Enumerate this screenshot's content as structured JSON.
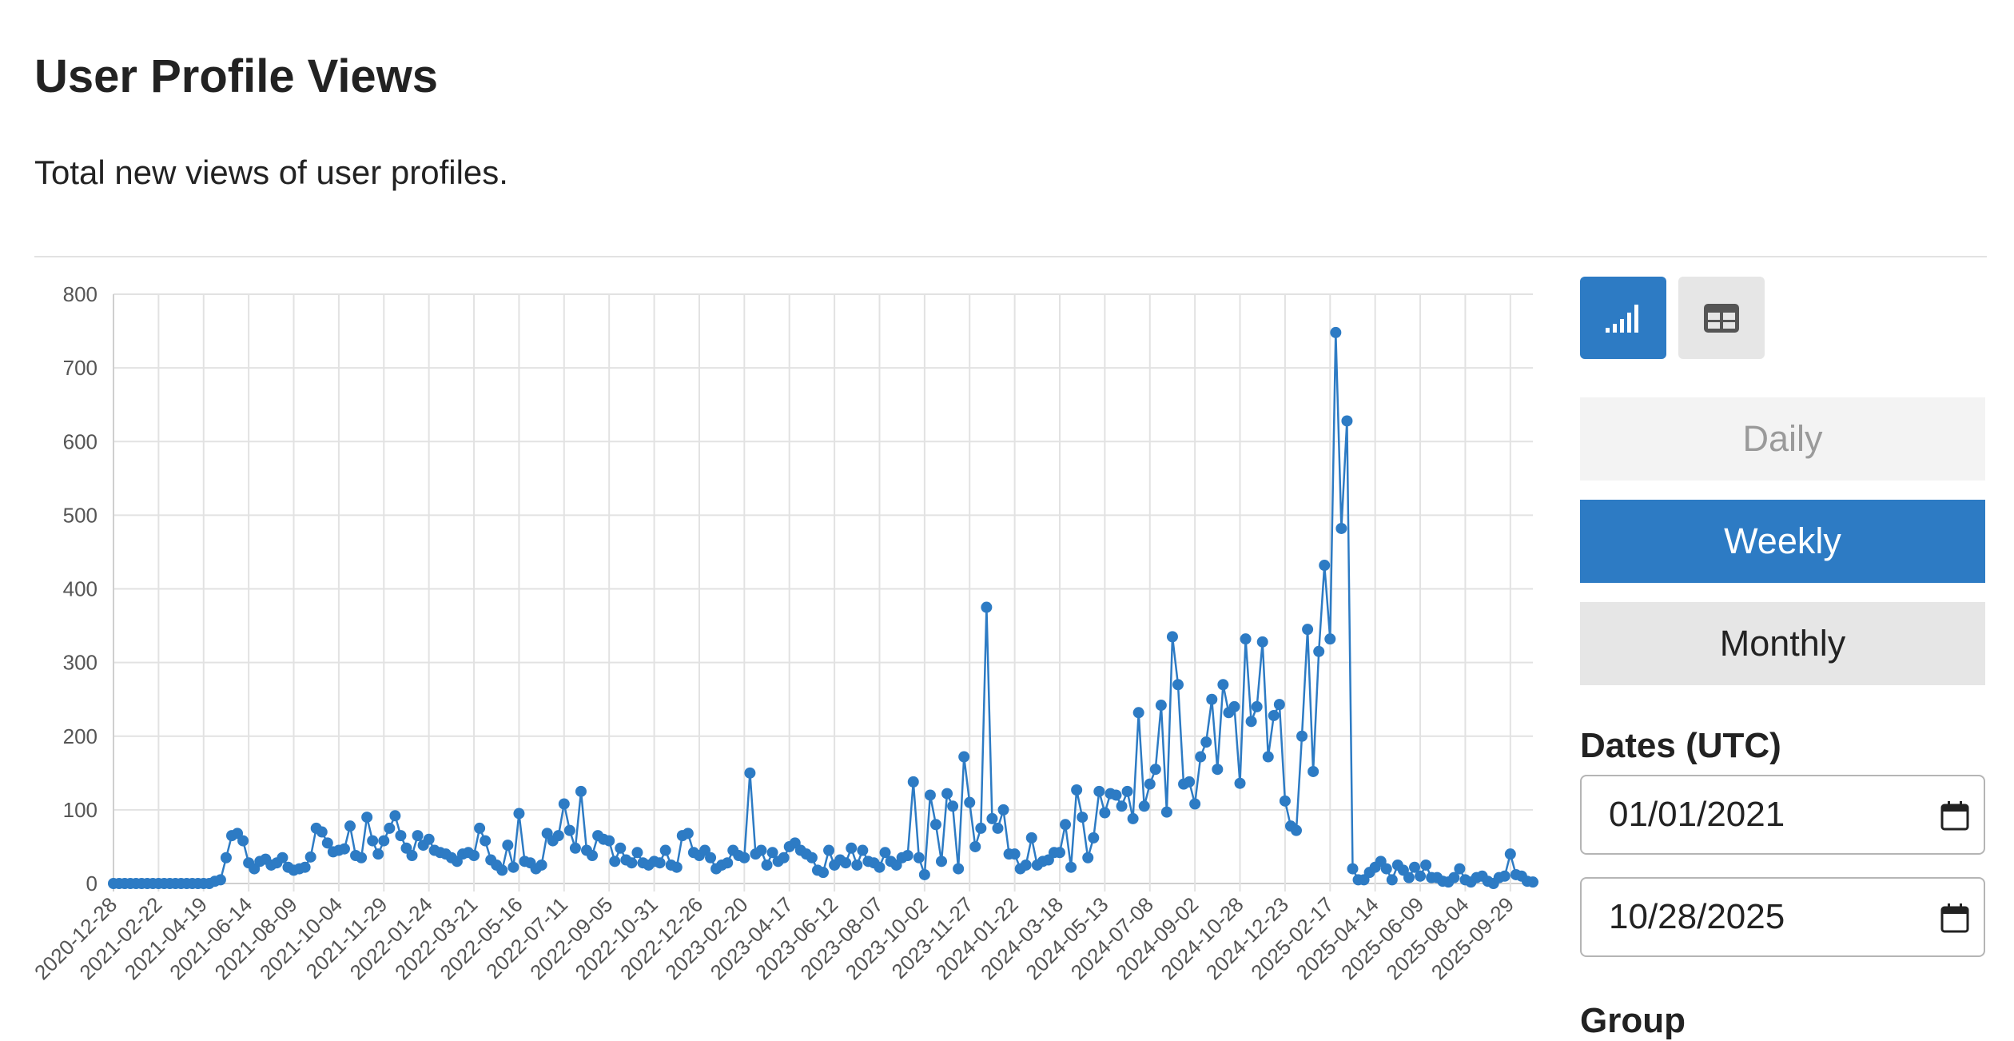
{
  "page": {
    "title": "User Profile Views",
    "subtitle": "Total new views of user profiles."
  },
  "controls": {
    "chart_view_icon": "bar-chart-icon",
    "table_view_icon": "table-icon",
    "periods": [
      "Daily",
      "Weekly",
      "Monthly"
    ],
    "selected_period": "Weekly",
    "dates_label": "Dates (UTC)",
    "start_date": "01/01/2021",
    "end_date": "10/28/2025",
    "calendar_icon": "calendar-icon",
    "group_label": "Group",
    "accent_color": "#2d7bc4"
  },
  "chart_data": {
    "type": "line",
    "title": "",
    "xlabel": "",
    "ylabel": "",
    "ylim": [
      0,
      800
    ],
    "y_ticks": [
      0,
      100,
      200,
      300,
      400,
      500,
      600,
      700,
      800
    ],
    "grid": true,
    "markers": true,
    "color": "#2d7bc4",
    "x_tick_labels": [
      "2020-12-28",
      "2021-02-22",
      "2021-04-19",
      "2021-06-14",
      "2021-08-09",
      "2021-10-04",
      "2021-11-29",
      "2022-01-24",
      "2022-03-21",
      "2022-05-16",
      "2022-07-11",
      "2022-09-05",
      "2022-10-31",
      "2022-12-26",
      "2023-02-20",
      "2023-04-17",
      "2023-06-12",
      "2023-08-07",
      "2023-10-02",
      "2023-11-27",
      "2024-01-22",
      "2024-03-18",
      "2024-05-13",
      "2024-07-08",
      "2024-09-02",
      "2024-10-28",
      "2024-12-23",
      "2025-02-17",
      "2025-04-14",
      "2025-06-09",
      "2025-08-04",
      "2025-09-29"
    ],
    "points_per_tick": 8,
    "values": [
      0,
      0,
      0,
      0,
      0,
      0,
      0,
      0,
      0,
      0,
      0,
      0,
      0,
      0,
      0,
      0,
      0,
      0,
      3,
      5,
      35,
      65,
      68,
      58,
      28,
      20,
      30,
      33,
      25,
      28,
      35,
      22,
      18,
      20,
      22,
      36,
      75,
      70,
      55,
      43,
      45,
      47,
      78,
      38,
      35,
      90,
      58,
      40,
      58,
      75,
      92,
      65,
      48,
      38,
      65,
      52,
      60,
      45,
      42,
      40,
      35,
      30,
      40,
      42,
      38,
      75,
      58,
      32,
      25,
      18,
      52,
      22,
      95,
      30,
      28,
      20,
      25,
      68,
      58,
      65,
      108,
      72,
      48,
      125,
      45,
      38,
      65,
      60,
      58,
      30,
      48,
      32,
      28,
      42,
      28,
      25,
      30,
      28,
      45,
      25,
      22,
      65,
      68,
      42,
      38,
      45,
      35,
      20,
      25,
      28,
      45,
      38,
      35,
      150,
      40,
      45,
      25,
      42,
      30,
      35,
      50,
      55,
      45,
      40,
      35,
      18,
      15,
      45,
      25,
      32,
      28,
      48,
      25,
      45,
      30,
      28,
      22,
      42,
      30,
      25,
      35,
      38,
      138,
      35,
      12,
      120,
      80,
      30,
      122,
      105,
      20,
      172,
      110,
      50,
      75,
      375,
      88,
      75,
      100,
      40,
      40,
      20,
      25,
      62,
      25,
      30,
      32,
      42,
      42,
      80,
      22,
      127,
      90,
      35,
      62,
      125,
      96,
      122,
      120,
      105,
      125,
      88,
      232,
      105,
      135,
      155,
      242,
      97,
      335,
      270,
      135,
      138,
      108,
      172,
      192,
      250,
      155,
      270,
      232,
      240,
      136,
      332,
      220,
      240,
      328,
      172,
      228,
      243,
      112,
      78,
      72,
      200,
      345,
      152,
      315,
      432,
      332,
      748,
      482,
      628,
      20,
      5,
      5,
      15,
      22,
      30,
      20,
      5,
      25,
      18,
      8,
      22,
      10,
      25,
      8,
      8,
      3,
      2,
      8,
      20,
      5,
      2,
      8,
      10,
      3,
      0,
      8,
      10,
      40,
      12,
      10,
      3,
      2
    ]
  }
}
